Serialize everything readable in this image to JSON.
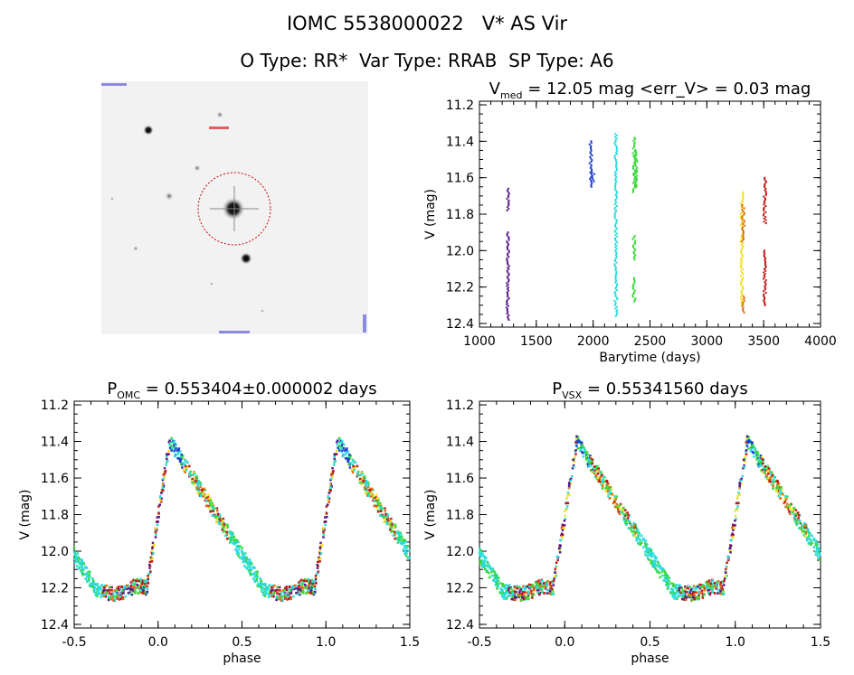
{
  "header": {
    "line1_id": "IOMC 5538000022",
    "line1_name": "V* AS Vir",
    "line2": "O Type: RR*  Var Type: RRAB  SP Type: A6"
  },
  "thumbnail": {
    "marker_color": "#cc0000",
    "label_color": "#2222cc"
  },
  "chart_data": [
    {
      "type": "scatter",
      "title": "V_med = 12.05 mag <err_V> = 0.03 mag",
      "title_parts": {
        "v": "V",
        "sub": "med",
        "rest": " = 12.05 mag <err_V> = 0.03 mag"
      },
      "xlabel": "Barytime (days)",
      "ylabel": "V (mag)",
      "xlim": [
        1000,
        4000
      ],
      "ylim": [
        12.42,
        11.18
      ],
      "x_ticks": [
        "1000",
        "1500",
        "2000",
        "2500",
        "3000",
        "3500",
        "4000"
      ],
      "y_ticks": [
        "11.2",
        "11.4",
        "11.6",
        "11.8",
        "12.0",
        "12.2",
        "12.4"
      ],
      "series": [
        {
          "color": "#5a1a8a",
          "segments": [
            [
              1250,
              11.66,
              11.78
            ],
            [
              1250,
              11.9,
              12.38
            ]
          ]
        },
        {
          "color": "#1a3fd0",
          "segments": [
            [
              1980,
              11.4,
              11.65
            ],
            [
              2000,
              11.57,
              11.62
            ]
          ]
        },
        {
          "color": "#2adcdc",
          "segments": [
            [
              2200,
              11.36,
              12.36
            ]
          ]
        },
        {
          "color": "#3ad83a",
          "segments": [
            [
              2360,
              11.38,
              11.68
            ],
            [
              2380,
              11.45,
              11.65
            ],
            [
              2360,
              11.92,
              12.05
            ],
            [
              2360,
              12.15,
              12.28
            ]
          ]
        },
        {
          "color": "#f0e020",
          "segments": [
            [
              3310,
              11.68,
              12.3
            ]
          ]
        },
        {
          "color": "#e07010",
          "segments": [
            [
              3320,
              11.75,
              11.95
            ],
            [
              3320,
              12.25,
              12.34
            ]
          ]
        },
        {
          "color": "#c01818",
          "segments": [
            [
              3510,
              11.6,
              11.85
            ],
            [
              3510,
              12.0,
              12.3
            ]
          ]
        }
      ]
    },
    {
      "type": "scatter",
      "title": "P_OMC = 0.553404±0.000002 days",
      "title_parts": {
        "p": "P",
        "sub": "OMC",
        "rest": " = 0.553404±0.000002 days"
      },
      "xlabel": "phase",
      "ylabel": "V (mag)",
      "xlim": [
        -0.5,
        1.5
      ],
      "ylim": [
        12.42,
        11.18
      ],
      "x_ticks": [
        "-0.5",
        "0.0",
        "0.5",
        "1.0",
        "1.5"
      ],
      "y_ticks": [
        "11.2",
        "11.4",
        "11.6",
        "11.8",
        "12.0",
        "12.2",
        "12.4"
      ],
      "phase_shift": 0.0
    },
    {
      "type": "scatter",
      "title": "P_VSX = 0.55341560 days",
      "title_parts": {
        "p": "P",
        "sub": "VSX",
        "rest": " = 0.55341560 days"
      },
      "xlabel": "phase",
      "ylabel": "V (mag)",
      "xlim": [
        -0.5,
        1.5
      ],
      "ylim": [
        12.42,
        11.18
      ],
      "x_ticks": [
        "-0.5",
        "0.0",
        "0.5",
        "1.0",
        "1.5"
      ],
      "y_ticks": [
        "11.2",
        "11.4",
        "11.6",
        "11.8",
        "12.0",
        "12.2",
        "12.4"
      ],
      "phase_shift": 0.0
    }
  ]
}
